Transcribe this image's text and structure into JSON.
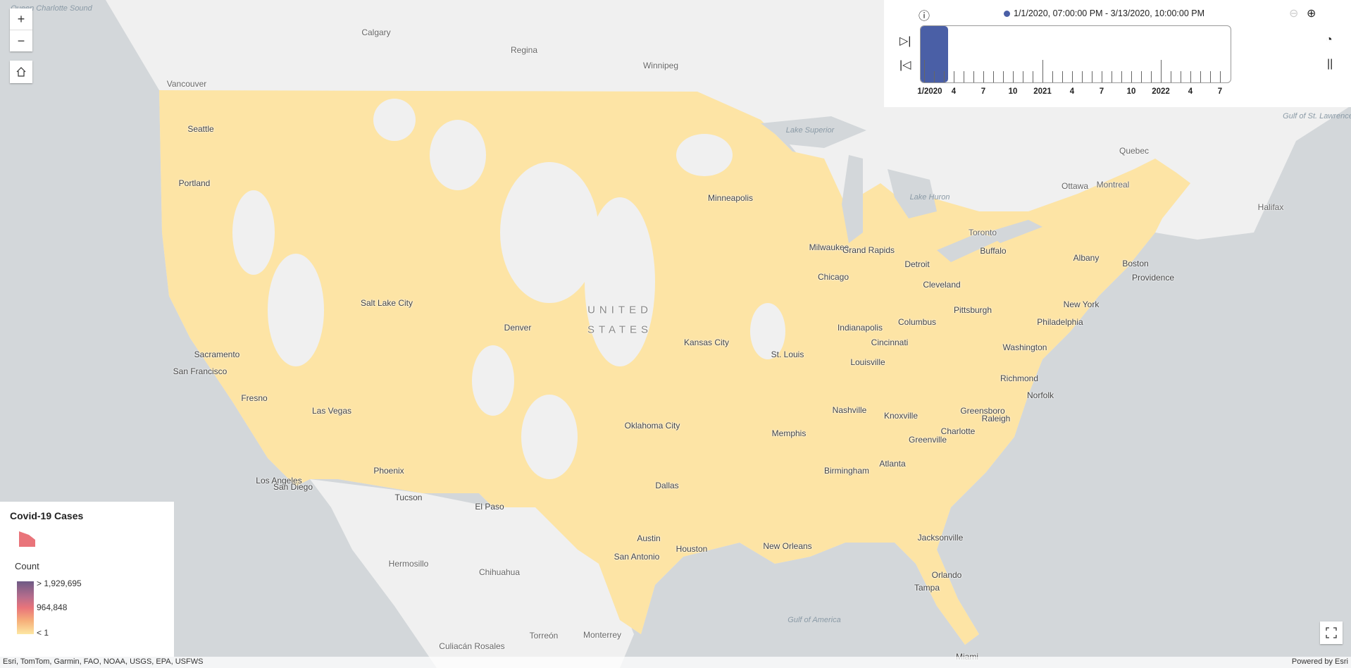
{
  "map": {
    "labels": [
      "Queen Charlotte Sound",
      "Calgary",
      "Regina",
      "Winnipeg",
      "Vancouver",
      "Seattle",
      "Portland",
      "Sacramento",
      "San Francisco",
      "Fresno",
      "Los Angeles",
      "San Diego",
      "Las Vegas",
      "Phoenix",
      "Tucson",
      "Salt Lake City",
      "Denver",
      "El Paso",
      "Oklahoma City",
      "Dallas",
      "Austin",
      "San Antonio",
      "Houston",
      "Kansas City",
      "St. Louis",
      "Minneapolis",
      "Milwaukee",
      "Chicago",
      "Grand Rapids",
      "Detroit",
      "Indianapolis",
      "Columbus",
      "Cleveland",
      "Pittsburgh",
      "Cincinnati",
      "Louisville",
      "Nashville",
      "Memphis",
      "Knoxville",
      "Atlanta",
      "Birmingham",
      "Charlotte",
      "Greensboro",
      "Raleigh",
      "Richmond",
      "Norfolk",
      "Greenville",
      "Washington",
      "Philadelphia",
      "New York",
      "Boston",
      "Providence",
      "Albany",
      "Buffalo",
      "Toronto",
      "Ottawa",
      "Montreal",
      "Quebec",
      "Halifax",
      "New Orleans",
      "Jacksonville",
      "Orlando",
      "Tampa",
      "Miami",
      "Hermosillo",
      "Chihuahua",
      "Monterrey",
      "Torreón",
      "Culiacán Rosales",
      "UNITED",
      "STATES",
      "Gulf of America",
      "Lake Superior",
      "Lake Huron",
      "Gulf of St. Lawrence"
    ],
    "colors": {
      "land": "#f0f0f0",
      "water": "#d3d7da",
      "fill": "#fde3a0"
    }
  },
  "controls": {
    "zoom_in": "+",
    "zoom_out": "−",
    "home_icon": "home-icon",
    "fullscreen_icon": "fullscreen-icon"
  },
  "time_slider": {
    "current_range": "1/1/2020, 07:00:00 PM - 3/13/2020, 10:00:00 PM",
    "tick_labels": [
      "1/2020",
      "4",
      "7",
      "10",
      "2021",
      "4",
      "7",
      "10",
      "2022",
      "4",
      "7"
    ],
    "accent": "#4a5fa6"
  },
  "legend": {
    "layer_title": "Covid-19 Cases",
    "field": "Count",
    "max_label": "> 1,929,695",
    "mid_label": "964,848",
    "min_label": "< 1"
  },
  "attribution": {
    "sources": "Esri, TomTom, Garmin, FAO, NOAA, USGS, EPA, USFWS",
    "powered_by": "Powered by Esri"
  }
}
